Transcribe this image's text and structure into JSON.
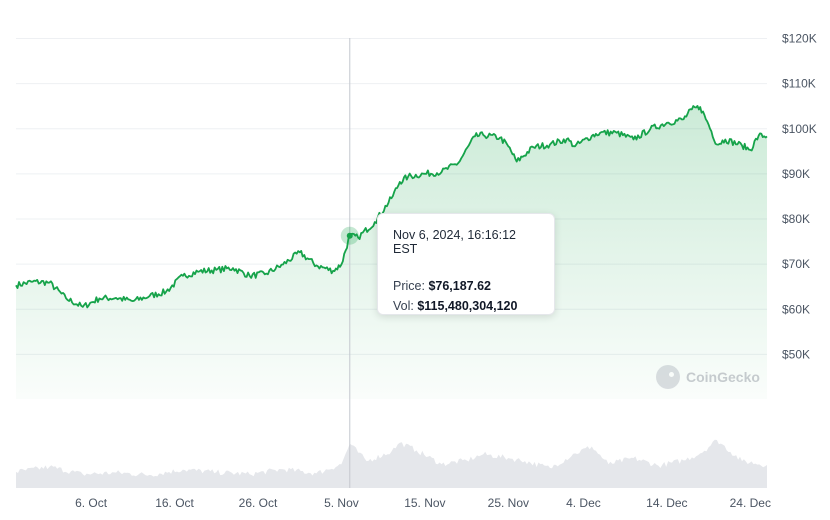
{
  "chart_data": {
    "type": "line",
    "title": "",
    "xlabel": "",
    "ylabel": "",
    "ylim": [
      40000,
      120000
    ],
    "y_ticks": [
      "$120K",
      "$110K",
      "$100K",
      "$90K",
      "$80K",
      "$70K",
      "$60K",
      "$50K"
    ],
    "y_tick_values": [
      120000,
      110000,
      100000,
      90000,
      80000,
      70000,
      60000,
      50000
    ],
    "x_range": [
      "2024-09-27",
      "2024-12-26"
    ],
    "x_ticks": [
      {
        "label": "6. Oct",
        "date": "2024-10-06"
      },
      {
        "label": "16. Oct",
        "date": "2024-10-16"
      },
      {
        "label": "26. Oct",
        "date": "2024-10-26"
      },
      {
        "label": "5. Nov",
        "date": "2024-11-05"
      },
      {
        "label": "15. Nov",
        "date": "2024-11-15"
      },
      {
        "label": "25. Nov",
        "date": "2024-11-25"
      },
      {
        "label": "4. Dec",
        "date": "2024-12-04"
      },
      {
        "label": "14. Dec",
        "date": "2024-12-14"
      },
      {
        "label": "24. Dec",
        "date": "2024-12-24"
      }
    ],
    "series": [
      {
        "type": "line",
        "color": "#16a34a",
        "x": [
          "2024-09-27",
          "2024-09-29",
          "2024-10-01",
          "2024-10-03",
          "2024-10-05",
          "2024-10-07",
          "2024-10-09",
          "2024-10-11",
          "2024-10-13",
          "2024-10-15",
          "2024-10-17",
          "2024-10-19",
          "2024-10-21",
          "2024-10-23",
          "2024-10-25",
          "2024-10-27",
          "2024-10-29",
          "2024-10-31",
          "2024-11-02",
          "2024-11-04",
          "2024-11-05",
          "2024-11-06",
          "2024-11-07",
          "2024-11-09",
          "2024-11-11",
          "2024-11-12",
          "2024-11-13",
          "2024-11-15",
          "2024-11-17",
          "2024-11-19",
          "2024-11-21",
          "2024-11-22",
          "2024-11-24",
          "2024-11-25",
          "2024-11-26",
          "2024-11-28",
          "2024-11-30",
          "2024-12-02",
          "2024-12-03",
          "2024-12-05",
          "2024-12-06",
          "2024-12-08",
          "2024-12-10",
          "2024-12-12",
          "2024-12-14",
          "2024-12-16",
          "2024-12-17",
          "2024-12-18",
          "2024-12-19",
          "2024-12-20",
          "2024-12-21",
          "2024-12-23",
          "2024-12-24",
          "2024-12-25",
          "2024-12-26"
        ],
        "values": [
          65200,
          66000,
          65800,
          62300,
          60400,
          62300,
          62400,
          61700,
          62800,
          63800,
          67300,
          68300,
          68600,
          69000,
          67300,
          67800,
          69800,
          72500,
          69600,
          68400,
          69800,
          76188,
          75800,
          79200,
          84500,
          88100,
          89300,
          89900,
          90300,
          92300,
          98200,
          98500,
          97900,
          96000,
          92600,
          95800,
          96400,
          97600,
          96000,
          98300,
          99000,
          99000,
          97500,
          99800,
          101200,
          102000,
          104200,
          104700,
          100800,
          96400,
          97500,
          96200,
          95200,
          98400,
          98200
        ]
      },
      {
        "name": "Vol",
        "type": "area",
        "color": "#e5e7eb",
        "x": [
          "2024-09-27",
          "2024-10-01",
          "2024-10-05",
          "2024-10-09",
          "2024-10-13",
          "2024-10-17",
          "2024-10-21",
          "2024-10-25",
          "2024-10-29",
          "2024-11-02",
          "2024-11-05",
          "2024-11-06",
          "2024-11-08",
          "2024-11-11",
          "2024-11-12",
          "2024-11-14",
          "2024-11-17",
          "2024-11-20",
          "2024-11-22",
          "2024-11-25",
          "2024-11-27",
          "2024-11-30",
          "2024-12-03",
          "2024-12-05",
          "2024-12-07",
          "2024-12-10",
          "2024-12-13",
          "2024-12-16",
          "2024-12-18",
          "2024-12-20",
          "2024-12-23",
          "2024-12-26"
        ],
        "values": [
          42000000000,
          55000000000,
          36000000000,
          40000000000,
          34000000000,
          48000000000,
          41000000000,
          36000000000,
          49000000000,
          38000000000,
          62000000000,
          115480304120,
          70000000000,
          95000000000,
          118000000000,
          98000000000,
          62000000000,
          72000000000,
          88000000000,
          78000000000,
          70000000000,
          52000000000,
          90000000000,
          108000000000,
          62000000000,
          78000000000,
          58000000000,
          72000000000,
          90000000000,
          125000000000,
          70000000000,
          60000000000
        ]
      }
    ],
    "tooltip": {
      "date": "Nov 6, 2024, 16:16:12 EST",
      "price_label": "Price:",
      "price": "$76,187.62",
      "vol_label": "Vol:",
      "vol": "$115,480,304,120",
      "x": "2024-11-06",
      "price_value": 76187.62
    },
    "grid": true,
    "legend": "none"
  },
  "watermark": {
    "text": "CoinGecko",
    "icon": "gecko-logo-icon"
  }
}
